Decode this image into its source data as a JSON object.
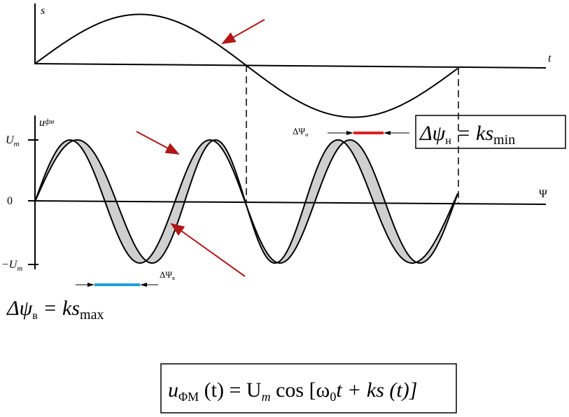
{
  "top_graph": {
    "y_label": "s",
    "x_label": "t"
  },
  "bottom_graph": {
    "y_label": {
      "main": "u",
      "sub": "фм"
    },
    "x_label": "Ψ",
    "ticks": {
      "top": {
        "main": "U",
        "sub": "m"
      },
      "zero": "0",
      "bottom": {
        "main": "−U",
        "sub": "m"
      }
    },
    "delta_upper": {
      "main": "ΔΨ",
      "sub": "н"
    },
    "delta_lower": {
      "main": "ΔΨ",
      "sub": "в"
    }
  },
  "formulas": {
    "upper": {
      "lhs": "Δψ",
      "lhs_sub": "н",
      "rhs": " = ks",
      "rhs_sub": "min"
    },
    "lower": {
      "lhs": "Δψ",
      "lhs_sub": "в",
      "rhs": " = ks",
      "rhs_sub": "max"
    },
    "main": {
      "u": "u",
      "u_sub": "ΦМ",
      "mid": " (t) = U",
      "m_sub": "m",
      "rest": " cos [ω",
      "zero_sub": "0",
      "end": "t + ks (t)]"
    }
  }
}
